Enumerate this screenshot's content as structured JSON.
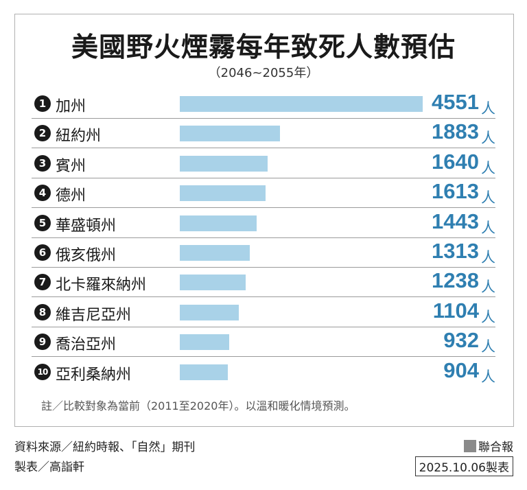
{
  "chart_data": {
    "type": "bar",
    "title": "美國野火煙霧每年致死人數預估",
    "subtitle": "（2046~2055年）",
    "ranks": [
      "1",
      "2",
      "3",
      "4",
      "5",
      "6",
      "7",
      "8",
      "9",
      "10"
    ],
    "categories": [
      "加州",
      "紐約州",
      "賓州",
      "德州",
      "華盛頓州",
      "俄亥俄州",
      "北卡羅來納州",
      "維吉尼亞州",
      "喬治亞州",
      "亞利桑納州"
    ],
    "values": [
      4551,
      1883,
      1640,
      1613,
      1443,
      1313,
      1238,
      1104,
      932,
      904
    ],
    "unit": "人",
    "bar_color": "#a9d2e8",
    "value_color": "#2f7fb1"
  },
  "note": "註／比較對象為當前（2011至2020年）。以溫和暖化情境預測。",
  "source": "資料來源／紐約時報、「自然」期刊",
  "maker": "製表／高詣軒",
  "brand": "聯合報",
  "date_stamp": "2025.10.06製表"
}
